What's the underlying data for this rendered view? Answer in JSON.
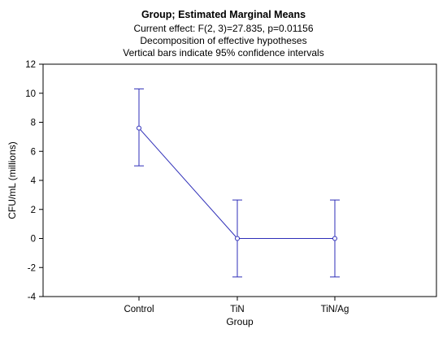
{
  "chart_data": {
    "type": "line",
    "title": "Group; Estimated Marginal Means",
    "subtitle": [
      "Current effect: F(2, 3)=27.835, p=0.01156",
      "Decomposition of effective hypotheses",
      "Vertical bars indicate 95% confidence intervals"
    ],
    "xlabel": "Group",
    "ylabel": "CFU/mL (millions)",
    "categories": [
      "Control",
      "TiN",
      "TiN/Ag"
    ],
    "series": [
      {
        "values": [
          7.6,
          0,
          0
        ],
        "ci_lower": [
          5.0,
          -2.65,
          -2.65
        ],
        "ci_upper": [
          10.3,
          2.65,
          2.65
        ]
      }
    ],
    "ylim": [
      -4,
      12
    ],
    "yticks": [
      "-4",
      "-2",
      "0",
      "2",
      "4",
      "6",
      "8",
      "10",
      "12"
    ],
    "grid": false,
    "line_color": "#2e2eb8"
  }
}
